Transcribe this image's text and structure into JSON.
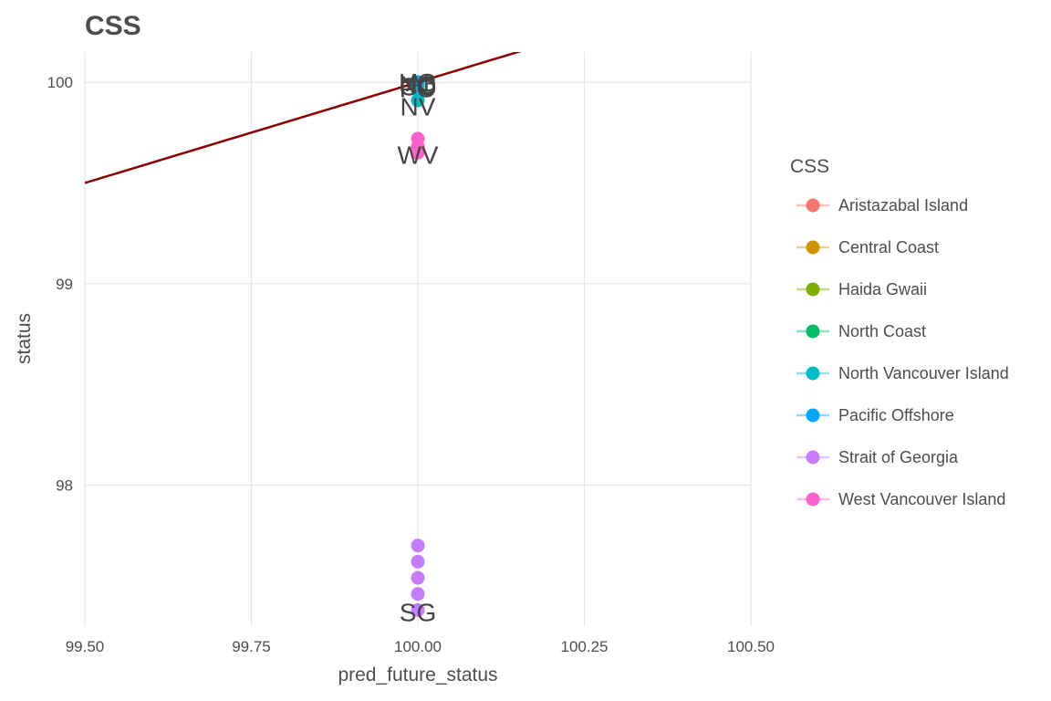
{
  "chart_data": {
    "type": "scatter",
    "title": "CSS",
    "xlabel": "pred_future_status",
    "ylabel": "status",
    "xlim": [
      99.5,
      100.5
    ],
    "ylim": [
      97.3,
      100.15
    ],
    "x_ticks": [
      99.5,
      99.75,
      100.0,
      100.25,
      100.5
    ],
    "x_tick_labels": [
      "99.50",
      "99.75",
      "100.00",
      "100.25",
      "100.50"
    ],
    "y_ticks": [
      98,
      99,
      100
    ],
    "y_tick_labels": [
      "98",
      "99",
      "100"
    ],
    "grid": true,
    "legend": {
      "title": "CSS",
      "position": "right"
    },
    "reference_line": {
      "type": "identity",
      "color": "#8b0000"
    },
    "series": [
      {
        "name": "Aristazabal Island",
        "color": "#F8766D",
        "x": [
          100,
          100
        ],
        "y": [
          100,
          99.98
        ]
      },
      {
        "name": "Central Coast",
        "color": "#CD9600",
        "x": [
          100,
          100
        ],
        "y": [
          100,
          99.97
        ]
      },
      {
        "name": "Haida Gwaii",
        "color": "#7CAE00",
        "x": [
          100,
          100
        ],
        "y": [
          100,
          99.99
        ]
      },
      {
        "name": "North Coast",
        "color": "#00BE67",
        "x": [
          100,
          100
        ],
        "y": [
          100,
          99.98
        ]
      },
      {
        "name": "North Vancouver Island",
        "color": "#00BFC4",
        "x": [
          100,
          100,
          100
        ],
        "y": [
          100,
          99.96,
          99.91
        ]
      },
      {
        "name": "Pacific Offshore",
        "color": "#00A9FF",
        "x": [
          100
        ],
        "y": [
          100
        ]
      },
      {
        "name": "Strait of Georgia",
        "color": "#C77CFF",
        "x": [
          100,
          100,
          100,
          100,
          100
        ],
        "y": [
          97.7,
          97.62,
          97.54,
          97.46,
          97.38
        ]
      },
      {
        "name": "West Vancouver Island",
        "color": "#FF61CC",
        "x": [
          100,
          100,
          100
        ],
        "y": [
          99.72,
          99.68,
          99.65
        ]
      }
    ],
    "point_labels": [
      {
        "text": "HG",
        "x": 100,
        "y": 100
      },
      {
        "text": "AI",
        "x": 100,
        "y": 100
      },
      {
        "text": "NC",
        "x": 100,
        "y": 99.99
      },
      {
        "text": "CC",
        "x": 100,
        "y": 99.98
      },
      {
        "text": "PO",
        "x": 100,
        "y": 99.97
      },
      {
        "text": "NV",
        "x": 100,
        "y": 99.88
      },
      {
        "text": "WV",
        "x": 100,
        "y": 99.64
      },
      {
        "text": "SG",
        "x": 100,
        "y": 97.37
      }
    ]
  }
}
